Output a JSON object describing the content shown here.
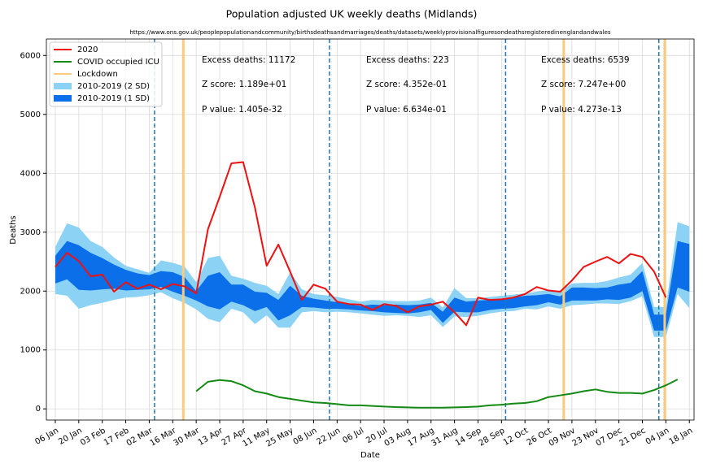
{
  "chart_data": {
    "type": "line",
    "title": "Population adjusted UK weekly deaths (Midlands)",
    "subtitle": "https://www.ons.gov.uk/peoplepopulationandcommunity/birthsdeathsandmarriages/deaths/datasets/weeklyprovisionalfiguresondeathsregisteredinenglandandwales",
    "x_label": "Date",
    "y_label": "Deaths",
    "categories": [
      "06 Jan",
      null,
      "20 Jan",
      null,
      "03 Feb",
      null,
      "17 Feb",
      null,
      "02 Mar",
      null,
      "16 Mar",
      null,
      "30 Mar",
      null,
      "13 Apr",
      null,
      "27 Apr",
      null,
      "11 May",
      null,
      "25 May",
      null,
      "08 Jun",
      null,
      "22 Jun",
      null,
      "06 Jul",
      null,
      "20 Jul",
      null,
      "03 Aug",
      null,
      "17 Aug",
      null,
      "31 Aug",
      null,
      "14 Sep",
      null,
      "28 Sep",
      null,
      "12 Oct",
      null,
      "26 Oct",
      null,
      "09 Nov",
      null,
      "23 Nov",
      null,
      "07 Dec",
      null,
      "21 Dec",
      null,
      "04 Jan",
      null,
      "18 Jan"
    ],
    "ylim": [
      -190,
      6280
    ],
    "yticks": [
      0,
      1000,
      2000,
      3000,
      4000,
      5000,
      6000
    ],
    "grid": true,
    "legend": "upper left",
    "series": [
      {
        "name": "2020",
        "color": "#ee1111",
        "values": [
          2410,
          2650,
          2510,
          2250,
          2280,
          1990,
          2150,
          2040,
          2110,
          2030,
          2120,
          2080,
          1960,
          3050,
          3600,
          4170,
          4190,
          3420,
          2430,
          2790,
          2330,
          1850,
          2110,
          2040,
          1820,
          1780,
          1770,
          1680,
          1780,
          1750,
          1640,
          1740,
          1770,
          1820,
          1640,
          1420,
          1890,
          1850,
          1860,
          1890,
          1950,
          2070,
          2010,
          1990,
          2180,
          2410,
          2500,
          2580,
          2470,
          2630,
          2580,
          2330,
          1890,
          null,
          null
        ]
      },
      {
        "name": "COVID occupied ICU",
        "color": "#138a13",
        "values": [
          null,
          null,
          null,
          null,
          null,
          null,
          null,
          null,
          null,
          null,
          null,
          null,
          300,
          460,
          490,
          470,
          400,
          300,
          260,
          200,
          170,
          140,
          110,
          100,
          80,
          60,
          60,
          50,
          40,
          30,
          25,
          20,
          20,
          20,
          25,
          30,
          40,
          60,
          70,
          90,
          100,
          130,
          200,
          230,
          260,
          300,
          330,
          290,
          270,
          270,
          260,
          320,
          400,
          500,
          null
        ]
      }
    ],
    "lockdown": {
      "name": "Lockdown",
      "color": "#fdc97a",
      "x": [
        10.9,
        43.3,
        51.9
      ]
    },
    "dividers": {
      "color": "#1f77b4",
      "x": [
        8.45,
        23.35,
        38.35,
        51.4
      ]
    },
    "bands": [
      {
        "name": "2010-2019 (2 SD)",
        "color": "#8cd2f5",
        "lower": [
          1950,
          1920,
          1700,
          1760,
          1800,
          1850,
          1890,
          1900,
          1930,
          1980,
          1880,
          1800,
          1690,
          1530,
          1470,
          1700,
          1640,
          1440,
          1590,
          1380,
          1380,
          1640,
          1660,
          1640,
          1650,
          1640,
          1620,
          1600,
          1580,
          1590,
          1580,
          1560,
          1590,
          1390,
          1570,
          1560,
          1580,
          1620,
          1650,
          1660,
          1700,
          1690,
          1740,
          1700,
          1760,
          1770,
          1790,
          1790,
          1780,
          1830,
          1910,
          1220,
          1220,
          1950,
          1710
        ],
        "upper": [
          2750,
          3150,
          3080,
          2850,
          2750,
          2570,
          2430,
          2370,
          2310,
          2520,
          2480,
          2420,
          2150,
          2560,
          2600,
          2260,
          2210,
          2140,
          2090,
          1950,
          2320,
          2030,
          1950,
          1930,
          1900,
          1860,
          1820,
          1850,
          1840,
          1830,
          1830,
          1840,
          1890,
          1720,
          2050,
          1880,
          1880,
          1900,
          1920,
          1940,
          1960,
          1990,
          2020,
          2000,
          2130,
          2140,
          2140,
          2170,
          2230,
          2280,
          2480,
          1730,
          1730,
          3170,
          3100
        ]
      },
      {
        "name": "2010-2019 (1 SD)",
        "color": "#0a6fe8",
        "lower": [
          2130,
          2200,
          2020,
          2010,
          2030,
          2040,
          2010,
          2020,
          2030,
          2070,
          1990,
          1920,
          1840,
          1740,
          1690,
          1820,
          1760,
          1660,
          1730,
          1500,
          1590,
          1730,
          1720,
          1700,
          1700,
          1690,
          1670,
          1660,
          1640,
          1630,
          1620,
          1640,
          1680,
          1460,
          1650,
          1640,
          1640,
          1680,
          1700,
          1710,
          1740,
          1760,
          1810,
          1770,
          1840,
          1840,
          1840,
          1860,
          1850,
          1890,
          2000,
          1330,
          1330,
          2060,
          1990
        ],
        "upper": [
          2600,
          2850,
          2780,
          2650,
          2560,
          2450,
          2360,
          2300,
          2270,
          2340,
          2320,
          2240,
          2000,
          2260,
          2320,
          2110,
          2110,
          1990,
          1970,
          1850,
          2090,
          1920,
          1870,
          1840,
          1810,
          1770,
          1750,
          1770,
          1760,
          1770,
          1760,
          1770,
          1800,
          1650,
          1890,
          1820,
          1840,
          1850,
          1870,
          1890,
          1920,
          1930,
          1950,
          1910,
          2060,
          2060,
          2050,
          2060,
          2110,
          2140,
          2340,
          1600,
          1600,
          2850,
          2800
        ]
      }
    ],
    "annotations": [
      [
        "Excess deaths: 11172",
        "Z score: 1.189e+01",
        "P value: 1.405e-32"
      ],
      [
        "Excess deaths: 223",
        "Z score: 4.352e-01",
        "P value: 6.634e-01"
      ],
      [
        "Excess deaths: 6539",
        "Z score: 7.247e+00",
        "P value: 4.273e-13"
      ]
    ]
  }
}
